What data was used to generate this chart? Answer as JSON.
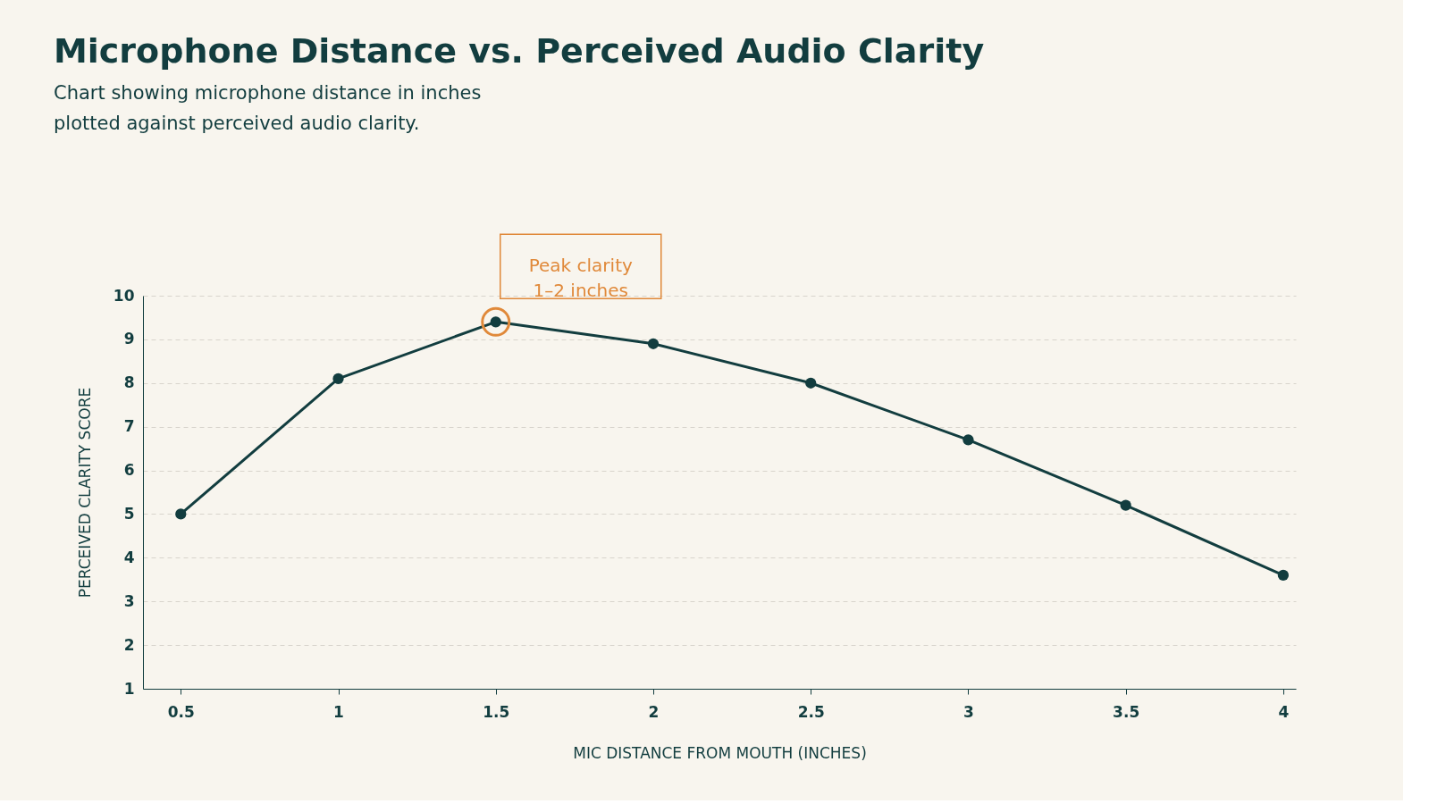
{
  "chart_data": {
    "type": "line",
    "title": "Microphone Distance vs. Perceived Audio Clarity",
    "subtitle": "Chart showing microphone distance in inches\nplotted against perceived audio clarity.",
    "xlabel": "MIC DISTANCE FROM MOUTH (INCHES)",
    "ylabel": "PERCEIVED CLARITY SCORE",
    "x": [
      0.5,
      1,
      1.5,
      2,
      2.5,
      3,
      3.5,
      4
    ],
    "series": [
      {
        "color": "#123d3f",
        "values": [
          5.0,
          8.1,
          9.4,
          8.9,
          8.0,
          6.7,
          5.2,
          3.6
        ]
      }
    ],
    "xlim": [
      0.38,
      4.04
    ],
    "xticks": [
      0.5,
      1,
      1.5,
      2,
      2.5,
      3,
      3.5,
      4
    ],
    "ylim": [
      1,
      10
    ],
    "yticks": [
      1,
      2,
      3,
      4,
      5,
      6,
      7,
      8,
      9,
      10
    ],
    "grid": "y",
    "marker": "circle",
    "line_style": "solid",
    "annotations": [
      {
        "text": "Peak clarity\n1–2 inches",
        "x": 1.5,
        "y": 9.4
      }
    ]
  }
}
